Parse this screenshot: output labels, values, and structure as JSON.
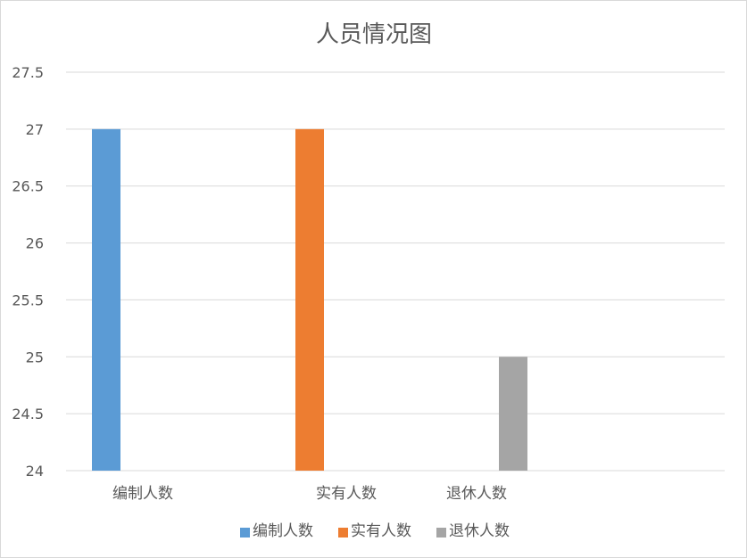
{
  "chart_data": {
    "type": "bar",
    "title": "人员情况图",
    "categories": [
      "编制人数",
      "实有人数",
      "退休人数"
    ],
    "values": [
      27,
      27,
      25
    ],
    "colors": [
      "#5B9BD5",
      "#ED7D31",
      "#A5A5A5"
    ],
    "ylim": [
      24,
      27.5
    ],
    "yticks": [
      "24",
      "24.5",
      "25",
      "25.5",
      "26",
      "26.5",
      "27",
      "27.5"
    ],
    "grid": true,
    "gridColor": "#d9d9d9",
    "legend": {
      "position": "bottom",
      "items": [
        "编制人数",
        "实有人数",
        "退休人数"
      ]
    }
  }
}
